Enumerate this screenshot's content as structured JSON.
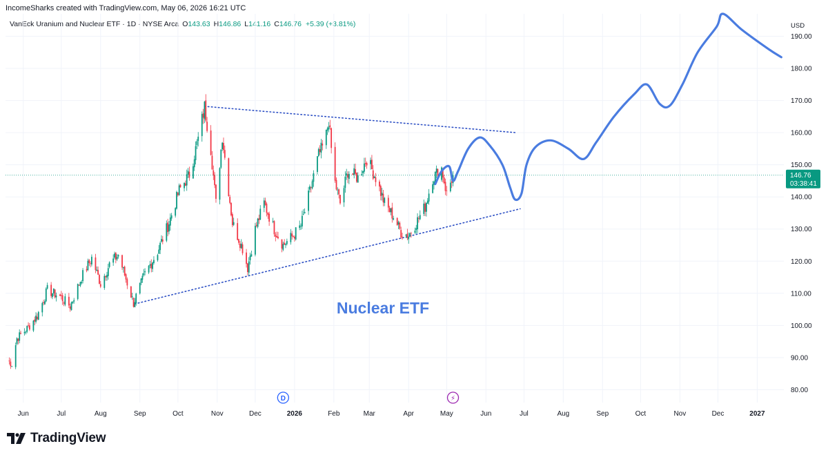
{
  "header": {
    "attribution": "IncomeSharks created with TradingView.com, May 06, 2026 16:21 UTC"
  },
  "legend": {
    "symbol": "VanEck Uranium and Nuclear ETF",
    "interval": "1D",
    "exchange": "NYSE Arca",
    "open_label": "O",
    "open": "143.63",
    "high_label": "H",
    "high": "146.86",
    "low_label": "L",
    "low": "141.16",
    "close_label": "C",
    "close": "146.76",
    "change": "+5.39 (+3.81%)"
  },
  "footer": {
    "brand": "TradingView"
  },
  "colors": {
    "up": "#089981",
    "down": "#f23645",
    "projection": "#4a7ce0",
    "trendline": "#2b4ec4",
    "grid": "#f0f3fa",
    "axis_text": "#131722"
  },
  "chart_data": {
    "type": "candlestick",
    "title": "",
    "annotation": "Nuclear ETF",
    "currency": "USD",
    "ylim": [
      76,
      197
    ],
    "y_ticks": [
      80,
      90,
      100,
      110,
      120,
      130,
      140,
      150,
      160,
      170,
      180,
      190
    ],
    "y_tick_labels": [
      "80.00",
      "90.00",
      "100.00",
      "110.00",
      "120.00",
      "130.00",
      "140.00",
      "150.00",
      "160.00",
      "170.00",
      "180.00",
      "190.00"
    ],
    "x_ticks": [
      {
        "date": "2025-06-01",
        "label": "Jun"
      },
      {
        "date": "2025-07-01",
        "label": "Jul"
      },
      {
        "date": "2025-08-01",
        "label": "Aug"
      },
      {
        "date": "2025-09-01",
        "label": "Sep"
      },
      {
        "date": "2025-10-01",
        "label": "Oct"
      },
      {
        "date": "2025-11-01",
        "label": "Nov"
      },
      {
        "date": "2025-12-01",
        "label": "Dec"
      },
      {
        "date": "2026-01-01",
        "label": "2026",
        "bold": true
      },
      {
        "date": "2026-02-01",
        "label": "Feb"
      },
      {
        "date": "2026-03-01",
        "label": "Mar"
      },
      {
        "date": "2026-04-01",
        "label": "Apr"
      },
      {
        "date": "2026-05-01",
        "label": "May"
      },
      {
        "date": "2026-06-01",
        "label": "Jun"
      },
      {
        "date": "2026-07-01",
        "label": "Jul"
      },
      {
        "date": "2026-08-01",
        "label": "Aug"
      },
      {
        "date": "2026-09-01",
        "label": "Sep"
      },
      {
        "date": "2026-10-01",
        "label": "Oct"
      },
      {
        "date": "2026-11-01",
        "label": "Nov"
      },
      {
        "date": "2026-12-01",
        "label": "Dec"
      },
      {
        "date": "2027-01-01",
        "label": "2027",
        "bold": true
      }
    ],
    "price_path": [
      [
        "2025-05-20",
        89
      ],
      [
        "2025-05-23",
        88
      ],
      [
        "2025-05-27",
        96
      ],
      [
        "2025-06-04",
        99
      ],
      [
        "2025-06-12",
        103
      ],
      [
        "2025-06-20",
        111
      ],
      [
        "2025-06-30",
        109
      ],
      [
        "2025-07-08",
        106
      ],
      [
        "2025-07-17",
        115
      ],
      [
        "2025-07-25",
        121
      ],
      [
        "2025-08-01",
        113
      ],
      [
        "2025-08-08",
        119
      ],
      [
        "2025-08-15",
        122
      ],
      [
        "2025-08-27",
        107
      ],
      [
        "2025-09-05",
        116
      ],
      [
        "2025-09-15",
        123
      ],
      [
        "2025-09-24",
        132
      ],
      [
        "2025-10-02",
        142
      ],
      [
        "2025-10-10",
        147
      ],
      [
        "2025-10-17",
        158
      ],
      [
        "2025-10-22",
        168
      ],
      [
        "2025-10-27",
        155
      ],
      [
        "2025-10-31",
        138
      ],
      [
        "2025-11-05",
        159
      ],
      [
        "2025-11-13",
        132
      ],
      [
        "2025-11-21",
        124
      ],
      [
        "2025-11-25",
        118
      ],
      [
        "2025-12-01",
        130
      ],
      [
        "2025-12-08",
        138
      ],
      [
        "2025-12-16",
        130
      ],
      [
        "2025-12-23",
        125
      ],
      [
        "2025-12-31",
        128
      ],
      [
        "2026-01-06",
        131
      ],
      [
        "2026-01-12",
        140
      ],
      [
        "2026-01-20",
        153
      ],
      [
        "2026-01-25",
        157
      ],
      [
        "2026-01-28",
        164
      ],
      [
        "2026-02-01",
        146
      ],
      [
        "2026-02-06",
        138
      ],
      [
        "2026-02-12",
        148
      ],
      [
        "2026-02-20",
        146
      ],
      [
        "2026-02-27",
        152
      ],
      [
        "2026-03-06",
        146
      ],
      [
        "2026-03-13",
        138
      ],
      [
        "2026-03-20",
        134
      ],
      [
        "2026-03-26",
        129
      ],
      [
        "2026-04-01",
        128
      ],
      [
        "2026-04-07",
        132
      ],
      [
        "2026-04-14",
        137
      ],
      [
        "2026-04-20",
        146
      ],
      [
        "2026-04-27",
        149
      ],
      [
        "2026-05-01",
        141
      ],
      [
        "2026-05-06",
        146.76
      ]
    ],
    "last_price": "146.76",
    "last_price_timer": "03:38:41",
    "trendlines": [
      {
        "name": "upper-resistance",
        "from": [
          "2025-10-22",
          168.2
        ],
        "to": [
          "2026-06-25",
          160
        ]
      },
      {
        "name": "lower-support",
        "from": [
          "2025-08-28",
          106.7
        ],
        "to": [
          "2026-06-28",
          136.3
        ]
      }
    ],
    "projection_path": [
      [
        "2026-04-22",
        144
      ],
      [
        "2026-04-27",
        148
      ],
      [
        "2026-05-03",
        149.5
      ],
      [
        "2026-05-06",
        145
      ],
      [
        "2026-05-10",
        148
      ],
      [
        "2026-05-18",
        155
      ],
      [
        "2026-05-27",
        158.5
      ],
      [
        "2026-06-04",
        156
      ],
      [
        "2026-06-14",
        150
      ],
      [
        "2026-06-20",
        143
      ],
      [
        "2026-06-24",
        139.2
      ],
      [
        "2026-06-29",
        141
      ],
      [
        "2026-07-03",
        150
      ],
      [
        "2026-07-10",
        155.5
      ],
      [
        "2026-07-22",
        157.6
      ],
      [
        "2026-08-05",
        155
      ],
      [
        "2026-08-17",
        151.8
      ],
      [
        "2026-08-27",
        157
      ],
      [
        "2026-09-10",
        165
      ],
      [
        "2026-09-26",
        172
      ],
      [
        "2026-10-06",
        175
      ],
      [
        "2026-10-16",
        169
      ],
      [
        "2026-10-24",
        168.4
      ],
      [
        "2026-11-03",
        175
      ],
      [
        "2026-11-15",
        185
      ],
      [
        "2026-11-30",
        193
      ],
      [
        "2026-12-05",
        197
      ],
      [
        "2026-12-20",
        192
      ],
      [
        "2027-01-10",
        186
      ],
      [
        "2027-01-20",
        183.5
      ]
    ],
    "event_markers": [
      {
        "date": "2025-12-23",
        "label": "D",
        "kind": "dividend"
      },
      {
        "date": "2026-05-06",
        "label": "⚡",
        "kind": "earnings"
      }
    ]
  }
}
